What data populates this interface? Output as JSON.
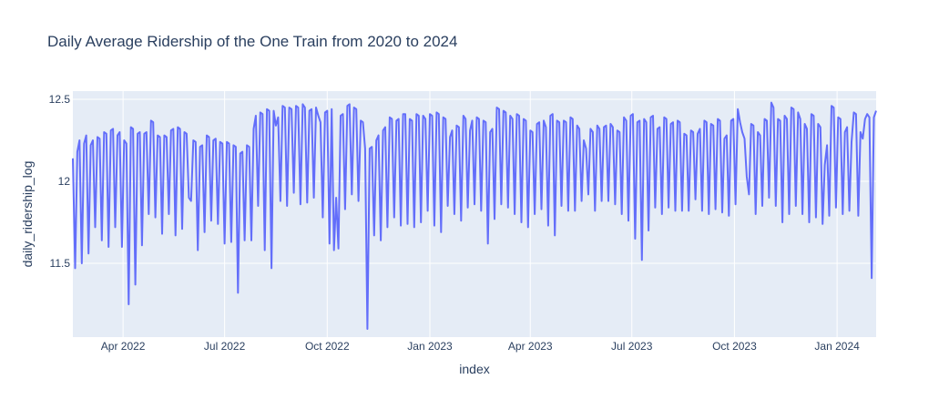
{
  "chart_data": {
    "type": "line",
    "title": "Daily Average Ridership of the One Train from 2020 to 2024",
    "xlabel": "index",
    "ylabel": "daily_ridership_log",
    "x_axis_type": "date",
    "xlim": [
      "2022-02-15",
      "2024-02-05"
    ],
    "ylim": [
      11.05,
      12.55
    ],
    "x_ticks": [
      {
        "date": "2022-04-01",
        "label": "Apr 2022"
      },
      {
        "date": "2022-07-01",
        "label": "Jul 2022"
      },
      {
        "date": "2022-10-01",
        "label": "Oct 2022"
      },
      {
        "date": "2023-01-01",
        "label": "Jan 2023"
      },
      {
        "date": "2023-04-01",
        "label": "Apr 2023"
      },
      {
        "date": "2023-07-01",
        "label": "Jul 2023"
      },
      {
        "date": "2023-10-01",
        "label": "Oct 2023"
      },
      {
        "date": "2024-01-01",
        "label": "Jan 2024"
      }
    ],
    "y_ticks": [
      {
        "value": 11.5,
        "label": "11.5"
      },
      {
        "value": 12,
        "label": "12"
      },
      {
        "value": 12.5,
        "label": "12.5"
      }
    ],
    "grid": true,
    "legend": "none",
    "colors": {
      "line": "#636efa",
      "plot_bg": "#e5ecf6",
      "grid": "#ffffff",
      "text": "#2a3f5f"
    },
    "series": [
      {
        "x": [
          "2022-02-15",
          "2022-02-17",
          "2022-02-19",
          "2022-02-21",
          "2022-02-23",
          "2022-02-25",
          "2022-02-27",
          "2022-03-01",
          "2022-03-03",
          "2022-03-05",
          "2022-03-07",
          "2022-03-09",
          "2022-03-11",
          "2022-03-13",
          "2022-03-15",
          "2022-03-17",
          "2022-03-19",
          "2022-03-21",
          "2022-03-23",
          "2022-03-25",
          "2022-03-27",
          "2022-03-29",
          "2022-03-31",
          "2022-04-02",
          "2022-04-04",
          "2022-04-06",
          "2022-04-08",
          "2022-04-10",
          "2022-04-12",
          "2022-04-14",
          "2022-04-16",
          "2022-04-18",
          "2022-04-20",
          "2022-04-22",
          "2022-04-24",
          "2022-04-26",
          "2022-04-28",
          "2022-04-30",
          "2022-05-02",
          "2022-05-04",
          "2022-05-06",
          "2022-05-08",
          "2022-05-10",
          "2022-05-12",
          "2022-05-14",
          "2022-05-16",
          "2022-05-18",
          "2022-05-20",
          "2022-05-22",
          "2022-05-24",
          "2022-05-26",
          "2022-05-28",
          "2022-05-30",
          "2022-06-01",
          "2022-06-03",
          "2022-06-05",
          "2022-06-07",
          "2022-06-09",
          "2022-06-11",
          "2022-06-13",
          "2022-06-15",
          "2022-06-17",
          "2022-06-19",
          "2022-06-21",
          "2022-06-23",
          "2022-06-25",
          "2022-06-27",
          "2022-06-29",
          "2022-07-01",
          "2022-07-03",
          "2022-07-05",
          "2022-07-07",
          "2022-07-09",
          "2022-07-11",
          "2022-07-13",
          "2022-07-15",
          "2022-07-17",
          "2022-07-19",
          "2022-07-21",
          "2022-07-23",
          "2022-07-25",
          "2022-07-27",
          "2022-07-29",
          "2022-07-31",
          "2022-08-02",
          "2022-08-04",
          "2022-08-06",
          "2022-08-08",
          "2022-08-10",
          "2022-08-12",
          "2022-08-14",
          "2022-08-16",
          "2022-08-18",
          "2022-08-20",
          "2022-08-22",
          "2022-08-24",
          "2022-08-26",
          "2022-08-28",
          "2022-08-30",
          "2022-09-01",
          "2022-09-03",
          "2022-09-05",
          "2022-09-07",
          "2022-09-09",
          "2022-09-11",
          "2022-09-13",
          "2022-09-15",
          "2022-09-17",
          "2022-09-19",
          "2022-09-21",
          "2022-09-23",
          "2022-09-25",
          "2022-09-27",
          "2022-09-29",
          "2022-10-01",
          "2022-10-03",
          "2022-10-05",
          "2022-10-07",
          "2022-10-09",
          "2022-10-11",
          "2022-10-13",
          "2022-10-15",
          "2022-10-17",
          "2022-10-19",
          "2022-10-21",
          "2022-10-23",
          "2022-10-25",
          "2022-10-27",
          "2022-10-29",
          "2022-10-31",
          "2022-11-02",
          "2022-11-04",
          "2022-11-06",
          "2022-11-08",
          "2022-11-10",
          "2022-11-12",
          "2022-11-14",
          "2022-11-16",
          "2022-11-18",
          "2022-11-20",
          "2022-11-22",
          "2022-11-24",
          "2022-11-26",
          "2022-11-28",
          "2022-11-30",
          "2022-12-02",
          "2022-12-04",
          "2022-12-06",
          "2022-12-08",
          "2022-12-10",
          "2022-12-12",
          "2022-12-14",
          "2022-12-16",
          "2022-12-18",
          "2022-12-20",
          "2022-12-22",
          "2022-12-24",
          "2022-12-26",
          "2022-12-28",
          "2022-12-30",
          "2023-01-01",
          "2023-01-03",
          "2023-01-05",
          "2023-01-07",
          "2023-01-09",
          "2023-01-11",
          "2023-01-13",
          "2023-01-15",
          "2023-01-17",
          "2023-01-19",
          "2023-01-21",
          "2023-01-23",
          "2023-01-25",
          "2023-01-27",
          "2023-01-29",
          "2023-01-31",
          "2023-02-02",
          "2023-02-04",
          "2023-02-06",
          "2023-02-08",
          "2023-02-10",
          "2023-02-12",
          "2023-02-14",
          "2023-02-16",
          "2023-02-18",
          "2023-02-20",
          "2023-02-22",
          "2023-02-24",
          "2023-02-26",
          "2023-02-28",
          "2023-03-02",
          "2023-03-04",
          "2023-03-06",
          "2023-03-08",
          "2023-03-10",
          "2023-03-12",
          "2023-03-14",
          "2023-03-16",
          "2023-03-18",
          "2023-03-20",
          "2023-03-22",
          "2023-03-24",
          "2023-03-26",
          "2023-03-28",
          "2023-03-30",
          "2023-04-01",
          "2023-04-03",
          "2023-04-05",
          "2023-04-07",
          "2023-04-09",
          "2023-04-11",
          "2023-04-13",
          "2023-04-15",
          "2023-04-17",
          "2023-04-19",
          "2023-04-21",
          "2023-04-23",
          "2023-04-25",
          "2023-04-27",
          "2023-04-29",
          "2023-05-01",
          "2023-05-03",
          "2023-05-05",
          "2023-05-07",
          "2023-05-09",
          "2023-05-11",
          "2023-05-13",
          "2023-05-15",
          "2023-05-17",
          "2023-05-19",
          "2023-05-21",
          "2023-05-23",
          "2023-05-25",
          "2023-05-27",
          "2023-05-29",
          "2023-05-31",
          "2023-06-02",
          "2023-06-04",
          "2023-06-06",
          "2023-06-08",
          "2023-06-10",
          "2023-06-12",
          "2023-06-14",
          "2023-06-16",
          "2023-06-18",
          "2023-06-20",
          "2023-06-22",
          "2023-06-24",
          "2023-06-26",
          "2023-06-28",
          "2023-06-30",
          "2023-07-02",
          "2023-07-04",
          "2023-07-06",
          "2023-07-08",
          "2023-07-10",
          "2023-07-12",
          "2023-07-14",
          "2023-07-16",
          "2023-07-18",
          "2023-07-20",
          "2023-07-22",
          "2023-07-24",
          "2023-07-26",
          "2023-07-28",
          "2023-07-30",
          "2023-08-01",
          "2023-08-03",
          "2023-08-05",
          "2023-08-07",
          "2023-08-09",
          "2023-08-11",
          "2023-08-13",
          "2023-08-15",
          "2023-08-17",
          "2023-08-19",
          "2023-08-21",
          "2023-08-23",
          "2023-08-25",
          "2023-08-27",
          "2023-08-29",
          "2023-08-31",
          "2023-09-02",
          "2023-09-04",
          "2023-09-06",
          "2023-09-08",
          "2023-09-10",
          "2023-09-12",
          "2023-09-14",
          "2023-09-16",
          "2023-09-18",
          "2023-09-20",
          "2023-09-22",
          "2023-09-24",
          "2023-09-26",
          "2023-09-28",
          "2023-09-30",
          "2023-10-02",
          "2023-10-04",
          "2023-10-06",
          "2023-10-08",
          "2023-10-10",
          "2023-10-12",
          "2023-10-14",
          "2023-10-16",
          "2023-10-18",
          "2023-10-20",
          "2023-10-22",
          "2023-10-24",
          "2023-10-26",
          "2023-10-28",
          "2023-10-30",
          "2023-11-01",
          "2023-11-03",
          "2023-11-05",
          "2023-11-07",
          "2023-11-09",
          "2023-11-11",
          "2023-11-13",
          "2023-11-15",
          "2023-11-17",
          "2023-11-19",
          "2023-11-21",
          "2023-11-23",
          "2023-11-25",
          "2023-11-27",
          "2023-11-29",
          "2023-12-01",
          "2023-12-03",
          "2023-12-05",
          "2023-12-07",
          "2023-12-09",
          "2023-12-11",
          "2023-12-13",
          "2023-12-15",
          "2023-12-17",
          "2023-12-19",
          "2023-12-21",
          "2023-12-23",
          "2023-12-25",
          "2023-12-27",
          "2023-12-29",
          "2023-12-31",
          "2024-01-02",
          "2024-01-04",
          "2024-01-06",
          "2024-01-08",
          "2024-01-10",
          "2024-01-12",
          "2024-01-14",
          "2024-01-16",
          "2024-01-18",
          "2024-01-20",
          "2024-01-22",
          "2024-01-24",
          "2024-01-26",
          "2024-01-28",
          "2024-01-30",
          "2024-02-01",
          "2024-02-03",
          "2024-02-05"
        ],
        "y": [
          12.14,
          11.47,
          12.18,
          12.25,
          11.5,
          12.23,
          12.28,
          11.56,
          12.22,
          12.25,
          11.72,
          12.27,
          12.26,
          11.64,
          12.3,
          12.29,
          11.6,
          12.31,
          12.32,
          11.72,
          12.28,
          12.3,
          11.6,
          12.25,
          12.23,
          11.25,
          12.33,
          12.32,
          11.37,
          12.29,
          12.3,
          11.61,
          12.29,
          12.3,
          11.8,
          12.37,
          12.36,
          11.78,
          12.28,
          12.27,
          11.68,
          12.28,
          12.27,
          11.8,
          12.31,
          12.32,
          11.67,
          12.33,
          12.32,
          11.71,
          12.3,
          12.29,
          11.9,
          11.88,
          12.25,
          12.24,
          11.58,
          12.21,
          12.22,
          11.69,
          12.28,
          12.27,
          11.76,
          12.25,
          12.26,
          11.74,
          12.24,
          12.23,
          11.62,
          12.24,
          12.23,
          11.63,
          12.22,
          12.21,
          11.32,
          12.17,
          12.18,
          11.64,
          12.22,
          12.21,
          11.64,
          12.32,
          12.4,
          11.85,
          12.42,
          12.41,
          11.58,
          12.44,
          12.43,
          11.47,
          12.43,
          12.34,
          12.39,
          11.88,
          12.46,
          12.45,
          11.85,
          12.45,
          12.44,
          11.93,
          12.46,
          12.45,
          11.86,
          12.47,
          12.45,
          11.87,
          12.43,
          12.44,
          11.9,
          12.45,
          12.4,
          12.36,
          11.78,
          12.42,
          12.43,
          11.62,
          12.44,
          11.58,
          11.9,
          11.59,
          12.4,
          12.41,
          11.83,
          12.46,
          12.47,
          11.92,
          12.45,
          12.44,
          11.88,
          12.37,
          12.36,
          12.2,
          11.1,
          12.2,
          12.21,
          11.67,
          12.25,
          12.28,
          11.64,
          12.31,
          12.33,
          11.72,
          12.39,
          12.38,
          11.78,
          12.37,
          12.38,
          11.73,
          12.41,
          12.41,
          11.74,
          12.38,
          12.37,
          11.72,
          12.41,
          12.4,
          11.75,
          12.4,
          12.38,
          11.82,
          12.41,
          12.4,
          11.73,
          12.42,
          12.41,
          11.69,
          12.39,
          12.38,
          11.85,
          12.27,
          12.31,
          11.8,
          12.34,
          12.33,
          11.76,
          12.4,
          12.38,
          11.84,
          12.31,
          12.37,
          11.86,
          12.39,
          12.38,
          11.82,
          12.37,
          12.36,
          11.62,
          12.3,
          12.32,
          11.77,
          12.45,
          12.44,
          11.86,
          12.43,
          12.42,
          11.84,
          12.4,
          12.38,
          11.8,
          12.41,
          12.4,
          11.75,
          12.38,
          12.37,
          11.72,
          12.31,
          12.3,
          11.8,
          12.35,
          12.36,
          11.83,
          12.37,
          12.33,
          11.73,
          12.4,
          12.41,
          11.67,
          12.37,
          12.36,
          11.85,
          12.37,
          12.36,
          11.82,
          12.39,
          12.38,
          11.82,
          12.34,
          12.32,
          11.88,
          12.25,
          12.2,
          11.92,
          12.32,
          12.3,
          11.82,
          12.34,
          12.32,
          11.88,
          12.33,
          12.34,
          11.88,
          12.35,
          12.33,
          11.86,
          12.31,
          12.3,
          11.8,
          12.39,
          12.37,
          11.76,
          12.4,
          12.41,
          11.65,
          12.36,
          12.37,
          11.52,
          12.38,
          12.36,
          11.7,
          12.39,
          12.4,
          11.84,
          12.32,
          12.33,
          11.8,
          12.39,
          12.38,
          11.84,
          12.35,
          12.36,
          11.82,
          12.37,
          12.36,
          11.82,
          12.29,
          12.28,
          11.82,
          12.31,
          12.3,
          11.89,
          12.29,
          12.32,
          11.82,
          12.37,
          12.36,
          11.8,
          12.35,
          12.34,
          11.83,
          12.38,
          12.37,
          11.81,
          12.26,
          12.28,
          11.79,
          12.37,
          12.38,
          11.86,
          12.44,
          12.36,
          12.3,
          12.26,
          12.03,
          11.92,
          12.35,
          12.34,
          11.8,
          12.3,
          12.28,
          11.85,
          12.38,
          12.37,
          11.9,
          12.48,
          12.45,
          11.85,
          12.38,
          12.37,
          11.75,
          12.4,
          12.38,
          11.8,
          12.45,
          12.44,
          11.85,
          12.42,
          12.38,
          11.8,
          12.35,
          12.32,
          11.75,
          12.41,
          12.4,
          11.78,
          12.35,
          12.33,
          11.74,
          12.1,
          12.22,
          11.79,
          12.46,
          12.45,
          11.84,
          12.39,
          12.38,
          11.8,
          12.3,
          12.33,
          11.82,
          12.24,
          12.42,
          12.41,
          11.79,
          12.3,
          12.26,
          12.38,
          12.41,
          12.39,
          11.41,
          12.39,
          12.43
        ]
      }
    ]
  }
}
